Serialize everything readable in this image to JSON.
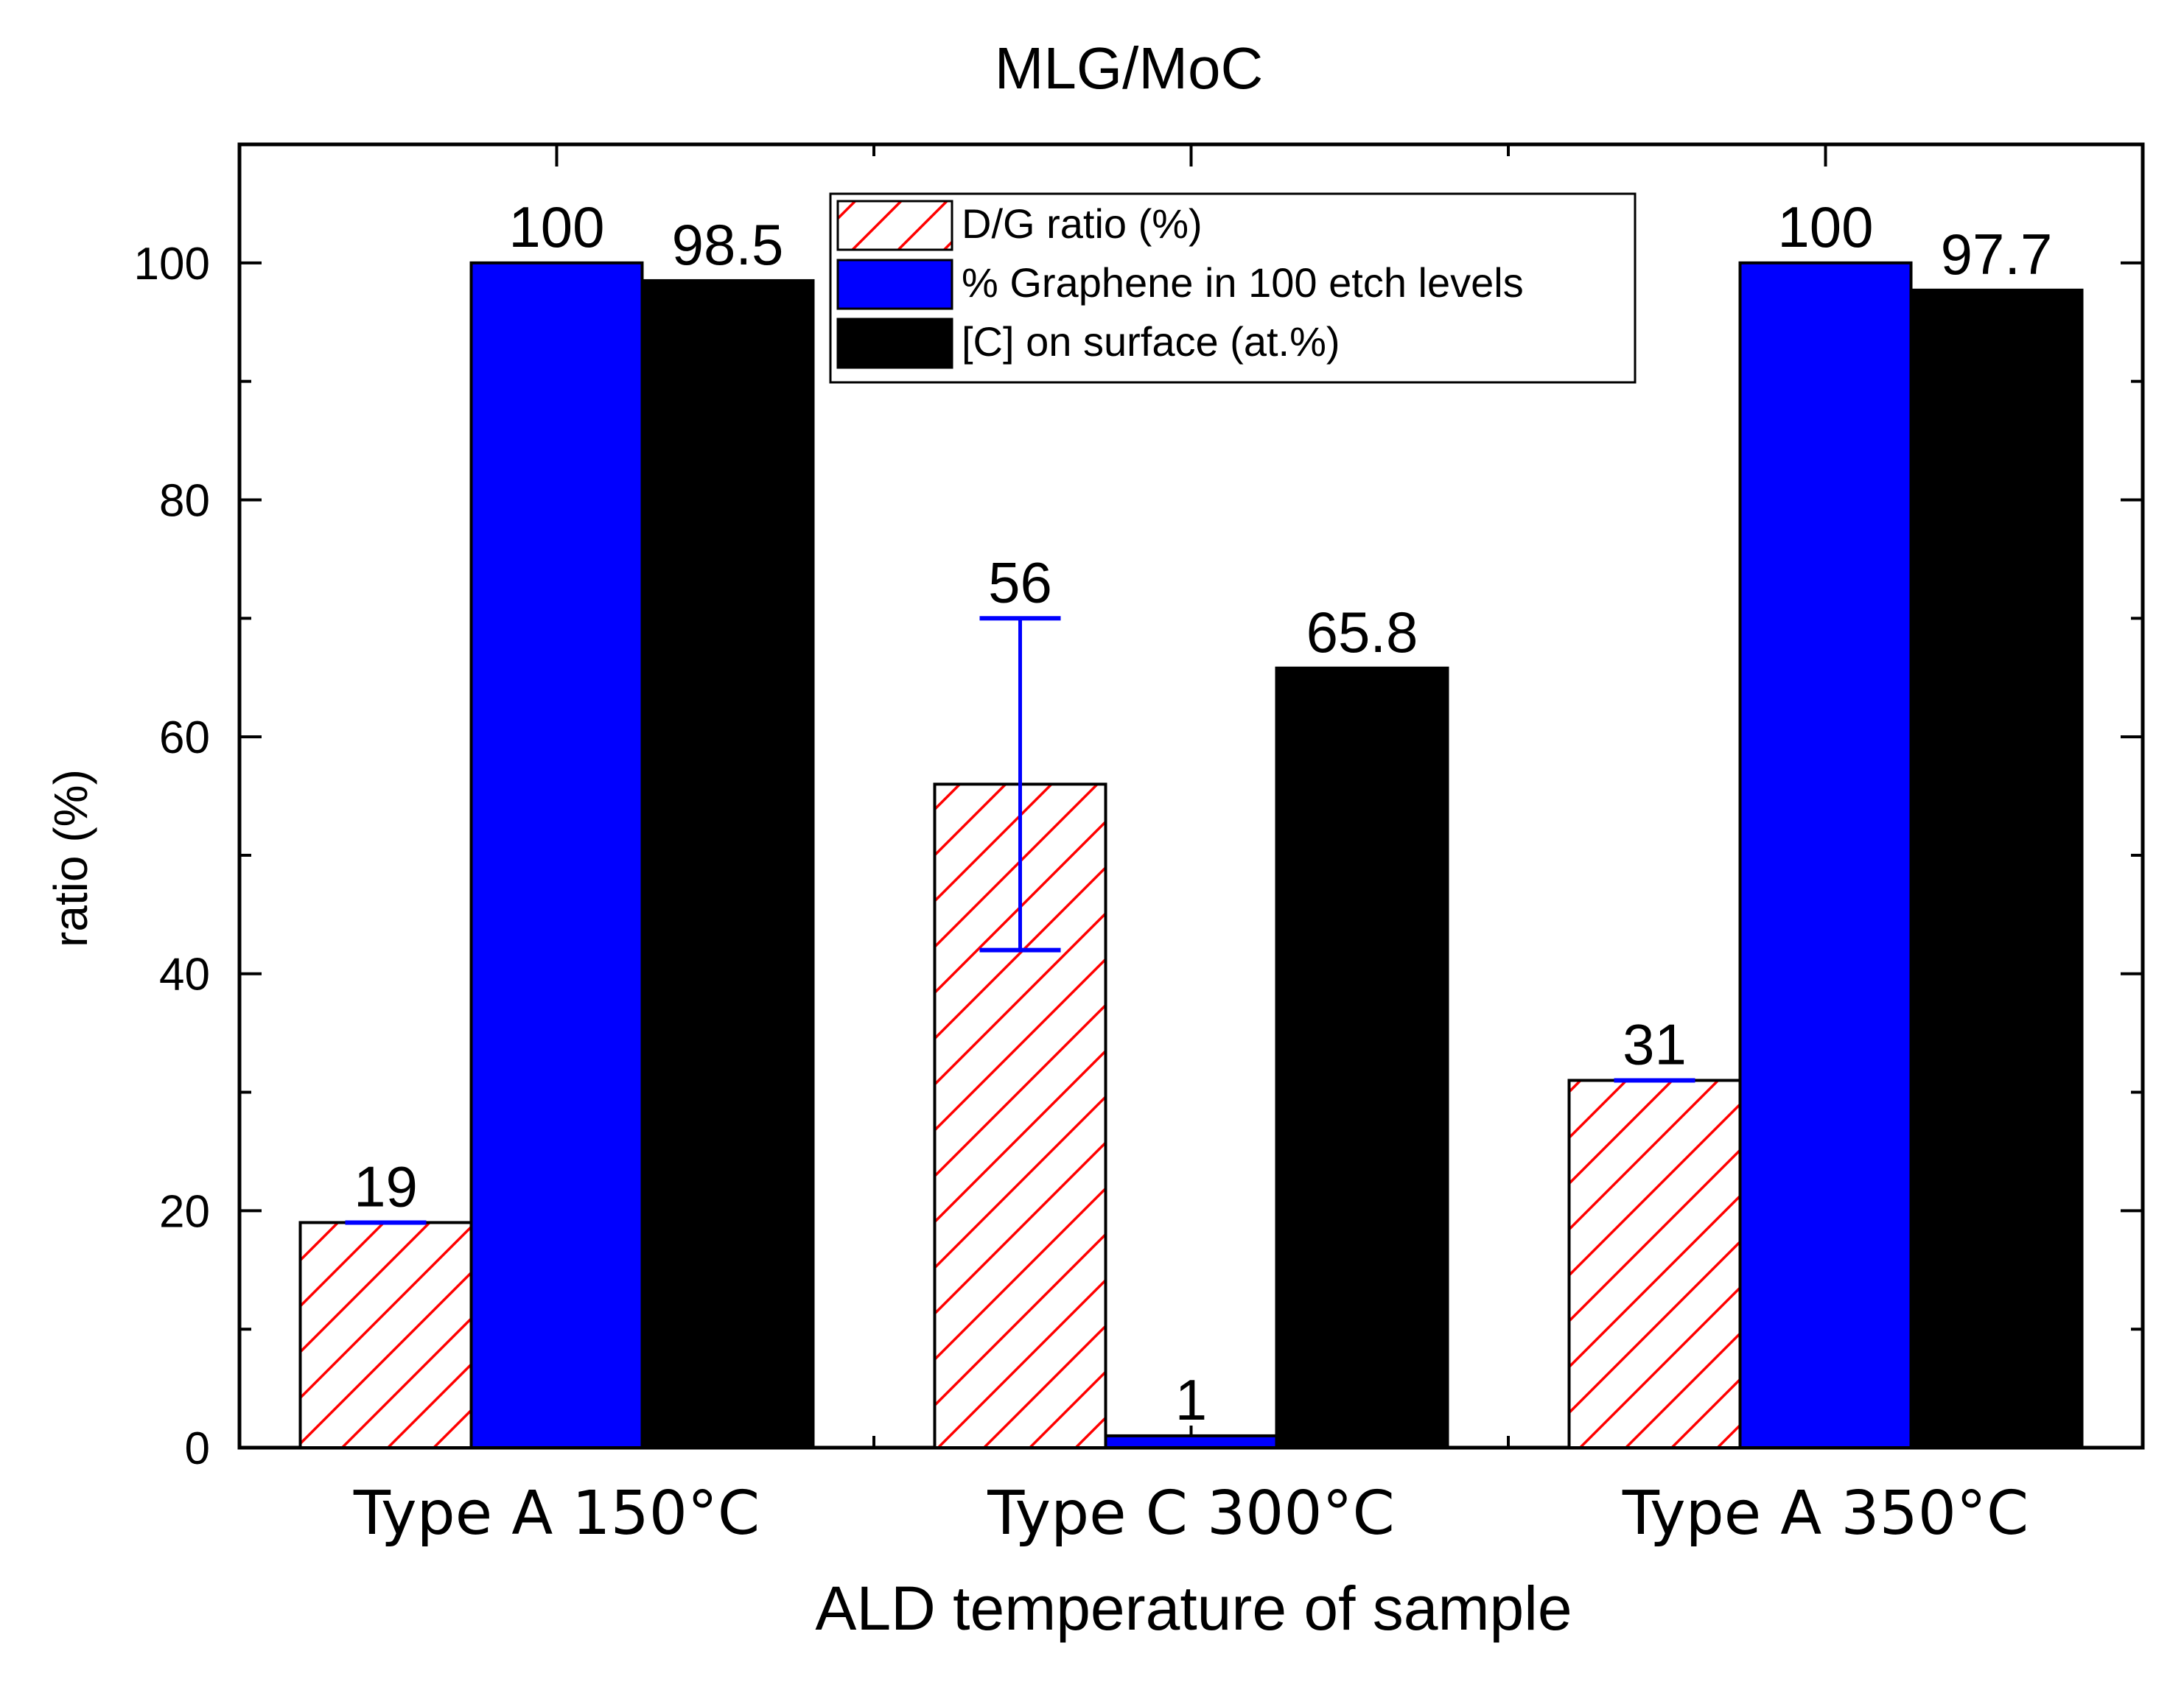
{
  "chart_data": {
    "type": "bar",
    "title": "MLG/MoC",
    "xlabel": "ALD temperature of sample",
    "ylabel": "ratio (%)",
    "ylim": [
      0,
      110
    ],
    "yticks": [
      0,
      20,
      40,
      60,
      80,
      100
    ],
    "categories": [
      "Type A 150°C",
      "Type C 300°C",
      "Type A 350°C"
    ],
    "legend_position": "top-center",
    "series": [
      {
        "name": "D/G ratio (%)",
        "style": "hatched",
        "color": "#ff0000",
        "values": [
          19,
          56,
          31
        ],
        "labels": [
          "19",
          "56",
          "31"
        ],
        "error_low": [
          19,
          42,
          31
        ],
        "error_high": [
          19,
          70,
          31
        ],
        "error_color": "#0000ff"
      },
      {
        "name": "% Graphene in 100 etch levels",
        "style": "solid",
        "color": "#0000ff",
        "values": [
          100,
          1,
          100
        ],
        "labels": [
          "100",
          "1",
          "100"
        ]
      },
      {
        "name": "[C]  on surface (at.%)",
        "style": "solid",
        "color": "#000000",
        "values": [
          98.5,
          65.8,
          97.7
        ],
        "labels": [
          "98.5",
          "65.8",
          "97.7"
        ]
      }
    ]
  }
}
